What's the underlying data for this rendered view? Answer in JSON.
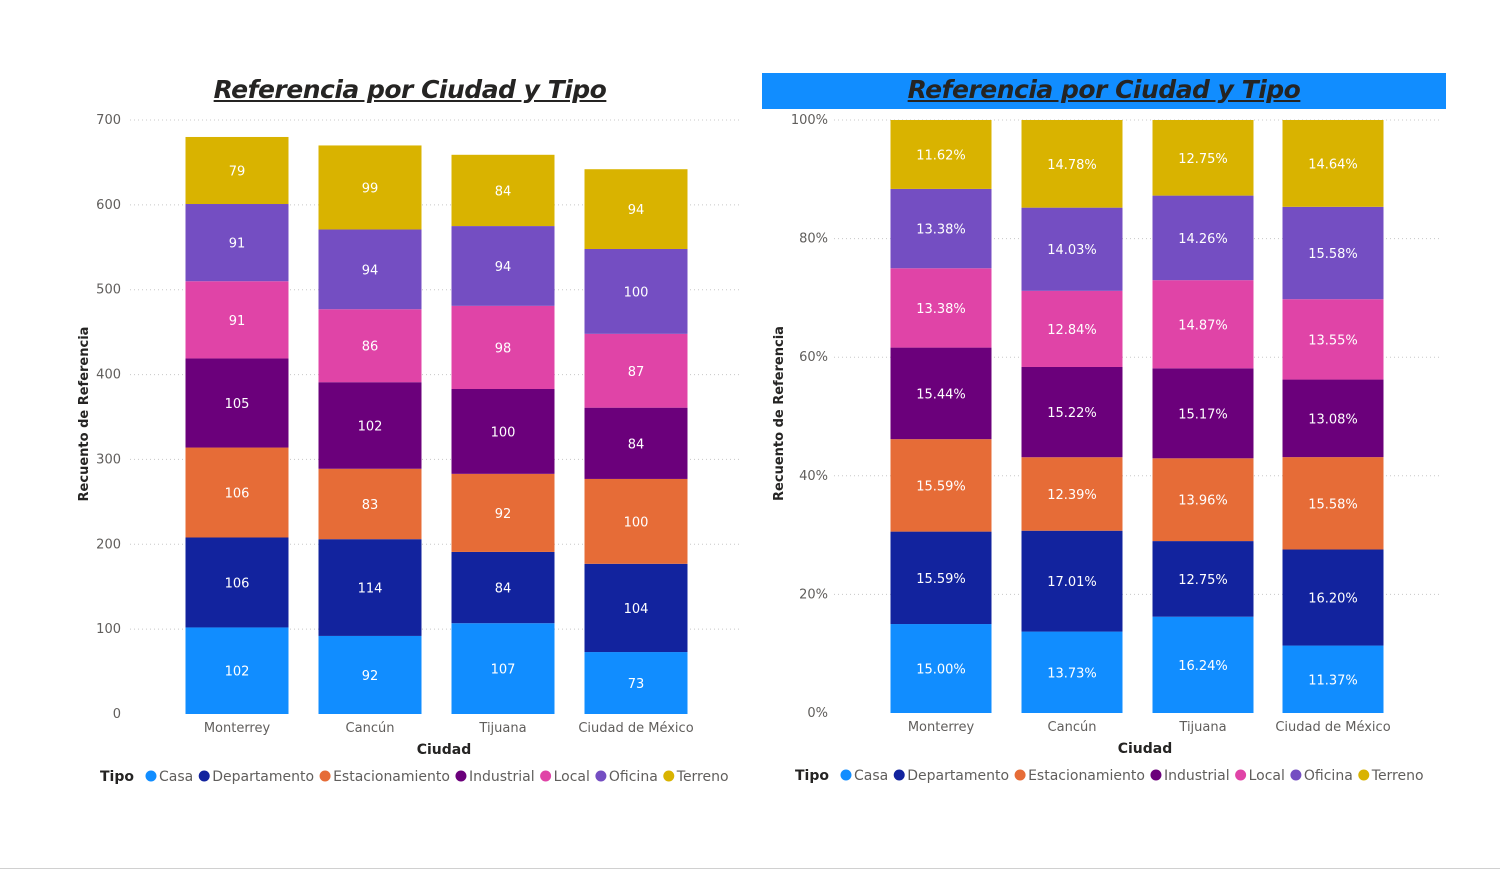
{
  "chart_data": [
    {
      "type": "bar",
      "stacked": true,
      "title": "Referencia por Ciudad y Tipo",
      "xlabel": "Ciudad",
      "ylabel": "Recuento de Referencia",
      "categories": [
        "Monterrey",
        "Cancún",
        "Tijuana",
        "Ciudad de México"
      ],
      "ylim": [
        0,
        700
      ],
      "yticks": [
        0,
        100,
        200,
        300,
        400,
        500,
        600,
        700
      ],
      "ytick_labels": [
        "0",
        "100",
        "200",
        "300",
        "400",
        "500",
        "600",
        "700"
      ],
      "grid": true,
      "legend_title": "Tipo",
      "legend_position": "bottom-left",
      "series": [
        {
          "name": "Casa",
          "color": "#118DFF",
          "values": [
            102,
            92,
            107,
            73
          ],
          "labels": [
            "102",
            "92",
            "107",
            "73"
          ]
        },
        {
          "name": "Departamento",
          "color": "#12239E",
          "values": [
            106,
            114,
            84,
            104
          ],
          "labels": [
            "106",
            "114",
            "84",
            "104"
          ]
        },
        {
          "name": "Estacionamiento",
          "color": "#E66C37",
          "values": [
            106,
            83,
            92,
            100
          ],
          "labels": [
            "106",
            "83",
            "92",
            "100"
          ]
        },
        {
          "name": "Industrial",
          "color": "#6B007B",
          "values": [
            105,
            102,
            100,
            84
          ],
          "labels": [
            "105",
            "102",
            "100",
            "84"
          ]
        },
        {
          "name": "Local",
          "color": "#E044A7",
          "values": [
            91,
            86,
            98,
            87
          ],
          "labels": [
            "91",
            "86",
            "98",
            "87"
          ]
        },
        {
          "name": "Oficina",
          "color": "#744EC2",
          "values": [
            91,
            94,
            94,
            100
          ],
          "labels": [
            "91",
            "94",
            "94",
            "100"
          ]
        },
        {
          "name": "Terreno",
          "color": "#D9B300",
          "values": [
            79,
            99,
            84,
            94
          ],
          "labels": [
            "79",
            "99",
            "84",
            "94"
          ]
        }
      ]
    },
    {
      "type": "bar",
      "stacked": true,
      "percent": true,
      "title": "Referencia por Ciudad y Tipo",
      "title_background": "#118DFF",
      "xlabel": "Ciudad",
      "ylabel": "Recuento de Referencia",
      "categories": [
        "Monterrey",
        "Cancún",
        "Tijuana",
        "Ciudad de México"
      ],
      "ylim": [
        0,
        100
      ],
      "yticks": [
        0,
        20,
        40,
        60,
        80,
        100
      ],
      "ytick_labels": [
        "0%",
        "20%",
        "40%",
        "60%",
        "80%",
        "100%"
      ],
      "grid": true,
      "legend_title": "Tipo",
      "legend_position": "bottom-left",
      "series": [
        {
          "name": "Casa",
          "color": "#118DFF",
          "values": [
            15.0,
            13.73,
            16.24,
            11.37
          ],
          "labels": [
            "15.00%",
            "13.73%",
            "16.24%",
            "11.37%"
          ]
        },
        {
          "name": "Departamento",
          "color": "#12239E",
          "values": [
            15.59,
            17.01,
            12.75,
            16.2
          ],
          "labels": [
            "15.59%",
            "17.01%",
            "12.75%",
            "16.20%"
          ]
        },
        {
          "name": "Estacionamiento",
          "color": "#E66C37",
          "values": [
            15.59,
            12.39,
            13.96,
            15.58
          ],
          "labels": [
            "15.59%",
            "12.39%",
            "13.96%",
            "15.58%"
          ]
        },
        {
          "name": "Industrial",
          "color": "#6B007B",
          "values": [
            15.44,
            15.22,
            15.17,
            13.08
          ],
          "labels": [
            "15.44%",
            "15.22%",
            "15.17%",
            "13.08%"
          ]
        },
        {
          "name": "Local",
          "color": "#E044A7",
          "values": [
            13.38,
            12.84,
            14.87,
            13.55
          ],
          "labels": [
            "13.38%",
            "12.84%",
            "14.87%",
            "13.55%"
          ]
        },
        {
          "name": "Oficina",
          "color": "#744EC2",
          "values": [
            13.38,
            14.03,
            14.26,
            15.58
          ],
          "labels": [
            "13.38%",
            "14.03%",
            "14.26%",
            "15.58%"
          ]
        },
        {
          "name": "Terreno",
          "color": "#D9B300",
          "values": [
            11.62,
            14.78,
            12.75,
            14.64
          ],
          "labels": [
            "11.62%",
            "14.78%",
            "12.75%",
            "14.64%"
          ]
        }
      ]
    }
  ]
}
